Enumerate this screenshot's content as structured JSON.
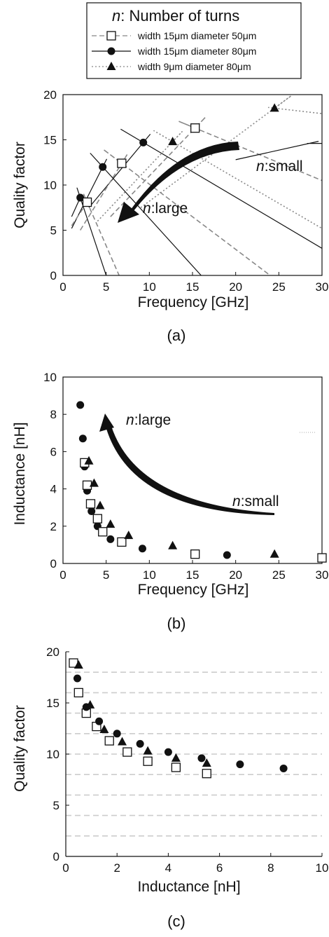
{
  "legend": {
    "title_var": "n",
    "title_text": ": Number of turns",
    "entries": [
      {
        "label": "width 15μm diameter 50μm",
        "marker": "open-square",
        "line": "dashed"
      },
      {
        "label": "width 15μm diameter 80μm",
        "marker": "filled-circle",
        "line": "solid"
      },
      {
        "label": "width 9μm diameter 80μm",
        "marker": "filled-triangle",
        "line": "dotted"
      }
    ]
  },
  "colors": {
    "ink": "#111111",
    "gray_line": "#888888",
    "grid": "#cccccc"
  },
  "chart_data": [
    {
      "panel_label": "(a)",
      "type": "line",
      "xlabel": "Frequency [GHz]",
      "ylabel": "Quality factor",
      "xlim": [
        0,
        30
      ],
      "ylim": [
        0,
        20
      ],
      "xticks": [
        "0",
        "5",
        "10",
        "15",
        "20",
        "25",
        "30"
      ],
      "yticks": [
        "0",
        "5",
        "10",
        "15",
        "20"
      ],
      "annotations": {
        "small_var": "n",
        "small_text": ":small",
        "large_var": "n",
        "large_text": ":large"
      },
      "series": [
        {
          "marker": "filled-triangle",
          "style": "dotted",
          "x": [
            24.5
          ],
          "y": [
            18.5
          ]
        },
        {
          "marker": "open-square",
          "style": "dashed",
          "x": [
            15.3
          ],
          "y": [
            16.3
          ]
        },
        {
          "marker": "filled-triangle",
          "style": "dotted",
          "x": [
            12.7
          ],
          "y": [
            14.8
          ]
        },
        {
          "marker": "filled-circle",
          "style": "solid",
          "x": [
            9.3
          ],
          "y": [
            14.7
          ]
        },
        {
          "marker": "open-square",
          "style": "dashed",
          "x": [
            6.8
          ],
          "y": [
            12.4
          ]
        },
        {
          "marker": "filled-circle",
          "style": "solid",
          "x": [
            4.6
          ],
          "y": [
            12.0
          ]
        },
        {
          "marker": "filled-circle",
          "style": "solid",
          "x": [
            2.0
          ],
          "y": [
            8.6
          ]
        },
        {
          "marker": "open-square",
          "style": "dashed",
          "x": [
            2.8
          ],
          "y": [
            8.1
          ]
        }
      ],
      "curves": [
        {
          "style": "dotted",
          "peak": [
            24.5,
            18.5
          ],
          "ends": [
            [
              9,
              7.5
            ],
            [
              30,
              17.9
            ]
          ]
        },
        {
          "style": "dashed",
          "peak": [
            15.3,
            16.3
          ],
          "ends": [
            [
              5.5,
              6.5
            ],
            [
              30,
              10.5
            ]
          ]
        },
        {
          "style": "dotted",
          "peak": [
            12.7,
            14.8
          ],
          "ends": [
            [
              4,
              6
            ],
            [
              30,
              5.2
            ]
          ]
        },
        {
          "style": "solid",
          "peak": [
            9.3,
            14.7
          ],
          "ends": [
            [
              3,
              7.5
            ],
            [
              30,
              3.0
            ]
          ]
        },
        {
          "style": "dashed",
          "peak": [
            6.8,
            12.4
          ],
          "ends": [
            [
              2,
              5
            ],
            [
              24,
              0
            ]
          ]
        },
        {
          "style": "solid",
          "peak": [
            4.6,
            12.0
          ],
          "ends": [
            [
              1,
              5.2
            ],
            [
              16,
              0
            ]
          ]
        },
        {
          "style": "dashed",
          "peak": [
            2.8,
            8.1
          ],
          "ends": [
            [
              1,
              5.5
            ],
            [
              6.5,
              0
            ]
          ]
        },
        {
          "style": "solid",
          "peak": [
            2.0,
            8.6
          ],
          "ends": [
            [
              1,
              6.5
            ],
            [
              5,
              0
            ]
          ]
        },
        {
          "style": "solid",
          "peak": [
            28.5,
            14.6
          ],
          "ends": [
            [
              20,
              12.8
            ],
            [
              30,
              14.6
            ]
          ]
        }
      ]
    },
    {
      "panel_label": "(b)",
      "type": "scatter",
      "xlabel": "Frequency [GHz]",
      "ylabel": "Inductance [nH]",
      "xlim": [
        0,
        30
      ],
      "ylim": [
        0,
        10
      ],
      "xticks": [
        "0",
        "5",
        "10",
        "15",
        "20",
        "25",
        "30"
      ],
      "yticks": [
        "0",
        "2",
        "4",
        "6",
        "8",
        "10"
      ],
      "annotations": {
        "small_var": "n",
        "small_text": ":small",
        "large_var": "n",
        "large_text": ":large"
      },
      "series": [
        {
          "marker": "filled-circle",
          "x": [
            2.0,
            2.3,
            2.5,
            2.8,
            3.3,
            4.0,
            5.5,
            9.2,
            19.0
          ],
          "y": [
            8.5,
            6.7,
            5.2,
            3.9,
            2.8,
            2.0,
            1.3,
            0.8,
            0.45
          ]
        },
        {
          "marker": "open-square",
          "x": [
            2.5,
            2.8,
            3.2,
            4.0,
            4.6,
            6.8,
            15.3,
            30.0
          ],
          "y": [
            5.4,
            4.2,
            3.2,
            2.4,
            1.7,
            1.15,
            0.5,
            0.3
          ]
        },
        {
          "marker": "filled-triangle",
          "x": [
            3.0,
            3.6,
            4.3,
            5.5,
            7.6,
            12.7,
            24.5
          ],
          "y": [
            5.5,
            4.3,
            3.1,
            2.1,
            1.5,
            0.95,
            0.5
          ]
        }
      ]
    },
    {
      "panel_label": "(c)",
      "type": "scatter",
      "xlabel": "Inductance [nH]",
      "ylabel": "Quality factor",
      "xlim": [
        0,
        10
      ],
      "ylim": [
        0,
        20
      ],
      "xticks": [
        "0",
        "2",
        "4",
        "6",
        "8",
        "10"
      ],
      "yticks": [
        "0",
        "5",
        "10",
        "15",
        "20"
      ],
      "grid": "horizontal dashed",
      "series": [
        {
          "marker": "open-square",
          "x": [
            0.3,
            0.5,
            0.8,
            1.2,
            1.7,
            2.4,
            3.2,
            4.3,
            5.5
          ],
          "y": [
            18.9,
            16.0,
            14.0,
            12.7,
            11.3,
            10.2,
            9.3,
            8.7,
            8.1
          ]
        },
        {
          "marker": "filled-circle",
          "x": [
            0.45,
            0.8,
            1.3,
            2.0,
            2.9,
            4.0,
            5.3,
            6.8,
            8.5
          ],
          "y": [
            17.4,
            14.6,
            13.2,
            12.0,
            11.0,
            10.2,
            9.6,
            9.0,
            8.6
          ]
        },
        {
          "marker": "filled-triangle",
          "x": [
            0.5,
            0.95,
            1.5,
            2.2,
            3.2,
            4.3,
            5.5
          ],
          "y": [
            18.7,
            14.8,
            12.4,
            11.2,
            10.3,
            9.6,
            9.1
          ]
        }
      ]
    }
  ]
}
